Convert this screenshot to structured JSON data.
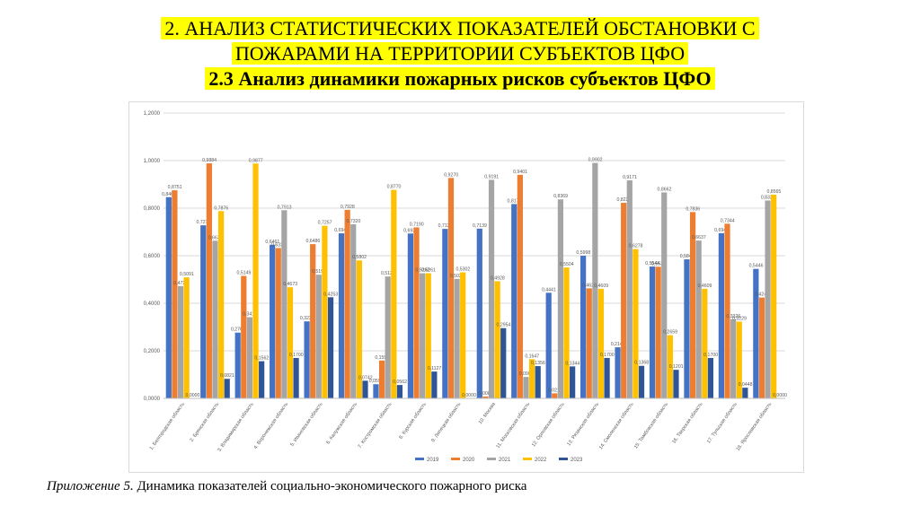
{
  "title": {
    "line1": "2. АНАЛИЗ СТАТИСТИЧЕСКИХ ПОКАЗАТЕЛЕЙ ОБСТАНОВКИ С",
    "line2": "ПОЖАРАМИ НА ТЕРРИТОРИИ СУБЪЕКТОВ ЦФО",
    "line3": "2.3 Анализ динамики пожарных рисков субъектов ЦФО"
  },
  "caption": {
    "label": "Приложение 5.",
    "text": " Динамика показателей социально-экономического пожарного риска"
  },
  "colors": {
    "2019": "#4472c4",
    "2020": "#ed7d31",
    "2021": "#a5a5a5",
    "2022": "#ffc000",
    "2023": "#2f5597",
    "grid": "#d9d9d9",
    "text": "#595959"
  },
  "chart_data": {
    "type": "bar",
    "ylim": [
      0,
      1.2
    ],
    "yticks": [
      "0,0000",
      "0,2000",
      "0,4000",
      "0,6000",
      "0,8000",
      "1,0000",
      "1,2000"
    ],
    "categories": [
      "1. Белгородская область",
      "2. Брянская область",
      "3. Владимирская область",
      "4. Воронежская область",
      "5. Ивановская область",
      "6. Калужская область",
      "7. Костромская область",
      "8. Курская область",
      "9. Липецкая область",
      "10. Москва",
      "11. Московская область",
      "12. Орловская область",
      "13. Рязанская область",
      "14. Смоленская область",
      "15. Тамбовская область",
      "16. Тверская область",
      "17. Тульская область",
      "18. Ярославская область"
    ],
    "series": [
      {
        "name": "2019",
        "values": [
          0.8462,
          0.7278,
          0.2765,
          0.6461,
          0.3238,
          0.694,
          0.0595,
          0.6933,
          0.7127,
          0.7139,
          0.8173,
          0.4441,
          0.5998,
          0.2147,
          0.5544,
          0.5846,
          0.6949,
          0.5446
        ]
      },
      {
        "name": "2020",
        "values": [
          0.8751,
          0.9884,
          0.5149,
          0.6323,
          0.6486,
          0.7928,
          0.1591,
          0.719,
          0.927,
          0.008,
          0.9401,
          0.0211,
          0.4628,
          0.8224,
          0.5536,
          0.7836,
          0.7344,
          0.4242
        ]
      },
      {
        "name": "2021",
        "values": [
          0.4722,
          0.6631,
          0.3415,
          0.7913,
          0.5199,
          0.732,
          0.5125,
          0.5262,
          0.5025,
          0.9191,
          0.0901,
          0.8369,
          0.9902,
          0.9171,
          0.8662,
          0.6637,
          0.3326,
          0.8322
        ]
      },
      {
        "name": "2022",
        "values": [
          0.5091,
          0.7876,
          0.9877,
          0.4673,
          0.7257,
          0.5802,
          0.877,
          0.5261,
          0.5302,
          0.4928,
          0.1647,
          0.5504,
          0.4609,
          0.6278,
          0.2659,
          0.4609,
          0.3229,
          0.8565
        ]
      },
      {
        "name": "2023",
        "values": [
          0.0,
          0.0821,
          0.1562,
          0.17,
          0.4253,
          0.0742,
          0.0562,
          0.1127,
          0.0,
          0.2954,
          0.1356,
          0.1344,
          0.17,
          0.1368,
          0.1201,
          0.17,
          0.0448,
          0.0
        ]
      }
    ]
  }
}
